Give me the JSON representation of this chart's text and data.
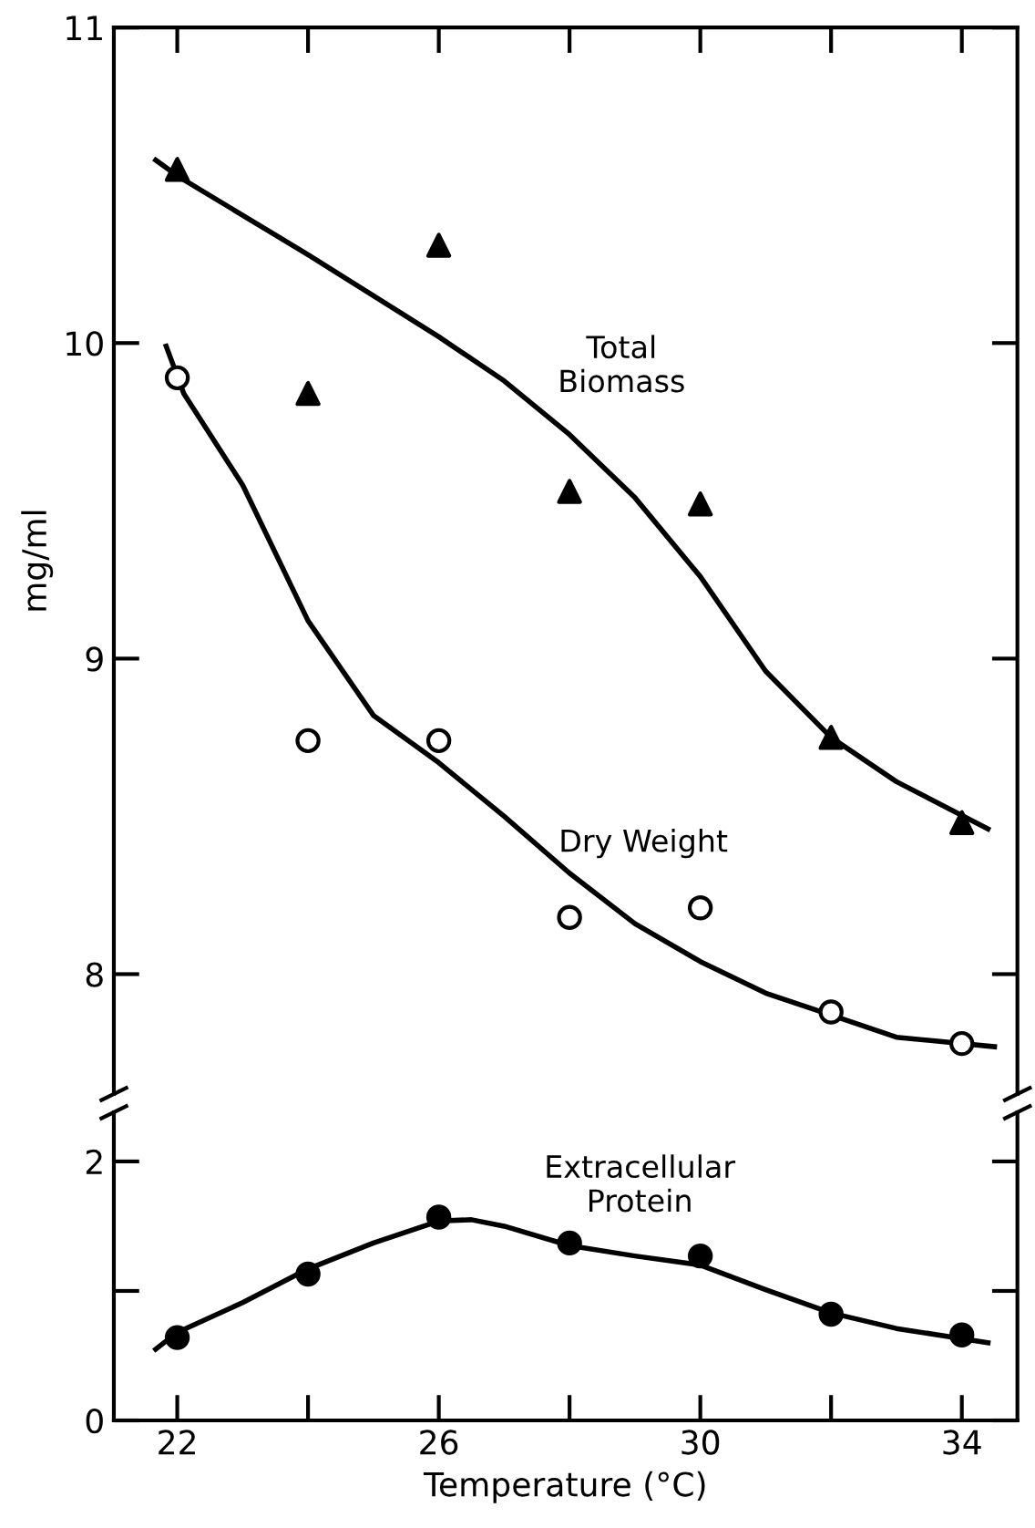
{
  "chart_data": [
    {
      "type": "scatter",
      "ylabel": "mg/ml",
      "xlim": [
        21.03,
        34.85
      ],
      "ylim": [
        7.62,
        11
      ],
      "xticks": [
        {
          "value": 22,
          "label": null
        },
        {
          "value": 24,
          "label": null
        },
        {
          "value": 26,
          "label": null
        },
        {
          "value": 28,
          "label": null
        },
        {
          "value": 30,
          "label": null
        },
        {
          "value": 32,
          "label": null
        },
        {
          "value": 34,
          "label": null
        }
      ],
      "yticks": [
        8,
        9,
        10,
        11
      ],
      "tick_labels": "y",
      "grid": false,
      "legend": false,
      "x": [
        22,
        24,
        26,
        28,
        30,
        32,
        34
      ],
      "series": [
        {
          "marker": "triangle",
          "color": "#000000",
          "values": [
            10.55,
            9.84,
            10.31,
            9.53,
            9.49,
            8.75,
            8.48
          ]
        },
        {
          "marker": "circle",
          "color": "#000000",
          "values": [
            9.89,
            8.74,
            8.74,
            8.18,
            8.21,
            7.88,
            7.78
          ]
        },
        {
          "type": "line",
          "marker": "none",
          "line_style": "solid",
          "color": "#000000",
          "x": [
            21.67,
            22,
            24,
            26,
            27,
            28,
            29,
            30,
            31,
            32,
            33,
            34.4
          ],
          "values": [
            10.58,
            10.53,
            10.28,
            10.02,
            9.88,
            9.71,
            9.51,
            9.26,
            8.96,
            8.75,
            8.61,
            8.46
          ]
        },
        {
          "type": "line",
          "marker": "none",
          "line_style": "solid",
          "color": "#000000",
          "x": [
            21.83,
            22.1,
            23,
            24,
            25,
            26,
            27,
            28,
            29,
            30,
            31,
            32,
            33,
            34.5
          ],
          "values": [
            9.99,
            9.84,
            9.55,
            9.12,
            8.82,
            8.67,
            8.5,
            8.32,
            8.16,
            8.04,
            7.94,
            7.87,
            7.8,
            7.77
          ]
        }
      ],
      "annotations": [
        "Total\nBiomass",
        "Dry Weight"
      ]
    },
    {
      "type": "scatter",
      "xlabel": "Temperature (°C)",
      "xlim": [
        21.03,
        34.85
      ],
      "ylim": [
        0,
        2.38
      ],
      "xticks": [
        22,
        {
          "value": 24,
          "label": null
        },
        26,
        {
          "value": 28,
          "label": null
        },
        30,
        {
          "value": 32,
          "label": null
        },
        34
      ],
      "yticks": [
        0,
        {
          "value": 1,
          "label": null
        },
        2
      ],
      "grid": false,
      "legend": false,
      "x": [
        22,
        24,
        26,
        28,
        30,
        32,
        34
      ],
      "series": [
        {
          "marker": "circle",
          "color": "#000000",
          "values": [
            0.64,
            1.13,
            1.57,
            1.37,
            1.27,
            0.82,
            0.66
          ]
        },
        {
          "type": "line",
          "marker": "none",
          "line_style": "solid",
          "color": "#000000",
          "x": [
            21.67,
            22,
            23,
            24,
            25,
            26,
            26.5,
            27,
            28,
            29,
            30,
            31,
            32,
            33,
            34.4
          ],
          "values": [
            0.55,
            0.68,
            0.91,
            1.17,
            1.37,
            1.54,
            1.55,
            1.5,
            1.35,
            1.27,
            1.2,
            1.01,
            0.83,
            0.71,
            0.6
          ]
        }
      ],
      "annotations": [
        "Extracellular\nProtein"
      ]
    }
  ]
}
